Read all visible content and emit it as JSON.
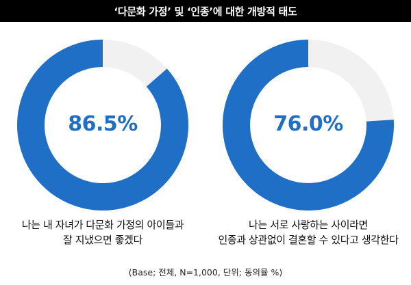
{
  "title": "‘다문화 가정’ 및 ‘인종’에 대한 개방적 태도",
  "chart_data": [
    {
      "type": "pie",
      "style": "donut",
      "value": 86.5,
      "value_label": "86.5%",
      "statement": [
        "나는 내 자녀가 다문화 가정의 아이들과",
        "잘 지냈으면 좋겠다"
      ],
      "colors": {
        "filled": "#1f6fc7",
        "remainder": "#f1f1f1"
      }
    },
    {
      "type": "pie",
      "style": "donut",
      "value": 76.0,
      "value_label": "76.0%",
      "statement": [
        "나는 서로 사랑하는 사이라면",
        "인종과 상관없이 결혼할 수 있다고 생각한다"
      ],
      "colors": {
        "filled": "#1f6fc7",
        "remainder": "#f1f1f1"
      }
    }
  ],
  "footnote": "(Base; 전체, N=1,000, 단위; 동의율 %)"
}
